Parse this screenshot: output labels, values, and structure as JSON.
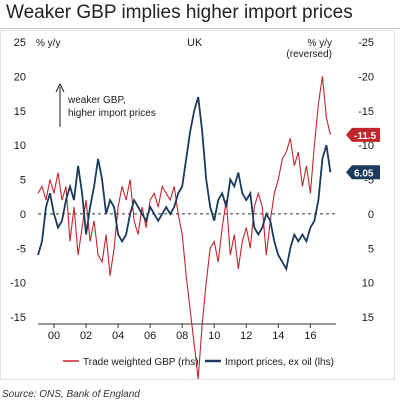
{
  "title": "Weaker GBP implies higher import prices",
  "source": "Source: ONS, Bank of England",
  "chart_data": {
    "type": "line",
    "country_label": "UK",
    "left_unit": "% y/y",
    "right_unit": "% y/y",
    "right_unit_note": "(reversed)",
    "annotation_line1": "weaker GBP,",
    "annotation_line2": "higher import prices",
    "x_range": [
      1999.0,
      2017.6
    ],
    "x_ticks": [
      2000,
      2002,
      2004,
      2006,
      2008,
      2010,
      2012,
      2014,
      2016
    ],
    "x_tick_labels": [
      "00",
      "02",
      "04",
      "06",
      "08",
      "10",
      "12",
      "14",
      "16"
    ],
    "left_ylim": [
      -15,
      25
    ],
    "left_ticks": [
      25,
      20,
      15,
      10,
      5,
      0,
      -5,
      -10,
      -15
    ],
    "left_tick_labels": [
      "25",
      "20",
      "15",
      "10",
      "5",
      "0",
      "-5",
      "-10",
      "-15"
    ],
    "right_ylim_reversed": [
      -25,
      15
    ],
    "right_ticks": [
      -25,
      -20,
      -15,
      -10,
      -5,
      0,
      5,
      10,
      15
    ],
    "right_tick_labels": [
      "-25",
      "-20",
      "-15",
      "-10",
      "-5",
      "0",
      "5",
      "10",
      "15"
    ],
    "zero_line": "dashed",
    "series": [
      {
        "name": "Trade weighted GBP (rhs)",
        "axis": "right",
        "color": "#c0262d",
        "end_label": "-11.5",
        "x": [
          1999.0,
          1999.25,
          1999.5,
          1999.75,
          2000.0,
          2000.25,
          2000.5,
          2000.75,
          2001.0,
          2001.25,
          2001.5,
          2001.75,
          2002.0,
          2002.25,
          2002.5,
          2002.75,
          2003.0,
          2003.25,
          2003.5,
          2003.75,
          2004.0,
          2004.25,
          2004.5,
          2004.75,
          2005.0,
          2005.25,
          2005.5,
          2005.75,
          2006.0,
          2006.25,
          2006.5,
          2006.75,
          2007.0,
          2007.25,
          2007.5,
          2007.75,
          2008.0,
          2008.25,
          2008.5,
          2008.75,
          2009.0,
          2009.25,
          2009.5,
          2009.75,
          2010.0,
          2010.25,
          2010.5,
          2010.75,
          2011.0,
          2011.25,
          2011.5,
          2011.75,
          2012.0,
          2012.25,
          2012.5,
          2012.75,
          2013.0,
          2013.25,
          2013.5,
          2013.75,
          2014.0,
          2014.25,
          2014.5,
          2014.75,
          2015.0,
          2015.25,
          2015.5,
          2015.75,
          2016.0,
          2016.25,
          2016.5,
          2016.75,
          2017.0,
          2017.25
        ],
        "values": [
          -3,
          -4,
          -2,
          -5,
          -3,
          -6,
          -2,
          -4,
          4,
          -1,
          6,
          2,
          -2,
          4,
          1,
          6,
          7,
          3,
          9,
          5,
          -1,
          -4,
          -2,
          -5,
          1,
          3,
          -1,
          2,
          -2,
          -3,
          -1,
          -4,
          -3,
          -2,
          -4,
          0,
          3,
          9,
          14,
          19,
          24,
          16,
          10,
          5,
          4,
          7,
          2,
          -2,
          6,
          3,
          8,
          4,
          2,
          5,
          -1,
          -3,
          -1,
          6,
          1,
          -3,
          -5,
          -8,
          -9,
          -11,
          -7,
          -9,
          -4,
          -7,
          -3,
          -10,
          -16,
          -20,
          -14,
          -11.5
        ]
      },
      {
        "name": "Import prices, ex oil (lhs)",
        "axis": "left",
        "color": "#1b3a5c",
        "end_label": "6.05",
        "x": [
          1999.0,
          1999.25,
          1999.5,
          1999.75,
          2000.0,
          2000.25,
          2000.5,
          2000.75,
          2001.0,
          2001.25,
          2001.5,
          2001.75,
          2002.0,
          2002.25,
          2002.5,
          2002.75,
          2003.0,
          2003.25,
          2003.5,
          2003.75,
          2004.0,
          2004.25,
          2004.5,
          2004.75,
          2005.0,
          2005.25,
          2005.5,
          2005.75,
          2006.0,
          2006.25,
          2006.5,
          2006.75,
          2007.0,
          2007.25,
          2007.5,
          2007.75,
          2008.0,
          2008.25,
          2008.5,
          2008.75,
          2009.0,
          2009.25,
          2009.5,
          2009.75,
          2010.0,
          2010.25,
          2010.5,
          2010.75,
          2011.0,
          2011.25,
          2011.5,
          2011.75,
          2012.0,
          2012.25,
          2012.5,
          2012.75,
          2013.0,
          2013.25,
          2013.5,
          2013.75,
          2014.0,
          2014.25,
          2014.5,
          2014.75,
          2015.0,
          2015.25,
          2015.5,
          2015.75,
          2016.0,
          2016.25,
          2016.5,
          2016.75,
          2017.0,
          2017.25
        ],
        "values": [
          -6,
          -4,
          1,
          3,
          0,
          -2,
          -1,
          2,
          4,
          2,
          7,
          3,
          -3,
          1,
          4,
          8,
          5,
          0,
          2,
          1,
          -3,
          -4,
          -3,
          0,
          2,
          1,
          0,
          -1,
          1,
          0,
          -1,
          0,
          1,
          0,
          1,
          3,
          4,
          8,
          12,
          15,
          17,
          12,
          5,
          1,
          -1,
          2,
          3,
          1,
          5,
          4,
          6,
          3,
          2,
          3,
          -2,
          -3,
          -2,
          0,
          -1,
          -4,
          -6,
          -7,
          -8,
          -5,
          -3,
          -4,
          -3,
          -4,
          -2,
          -1,
          2,
          8,
          10,
          6.05
        ]
      }
    ],
    "legend": [
      "Trade weighted GBP (rhs)",
      "Import prices, ex oil (lhs)"
    ],
    "legend_placement": "bottom",
    "grid": false
  }
}
